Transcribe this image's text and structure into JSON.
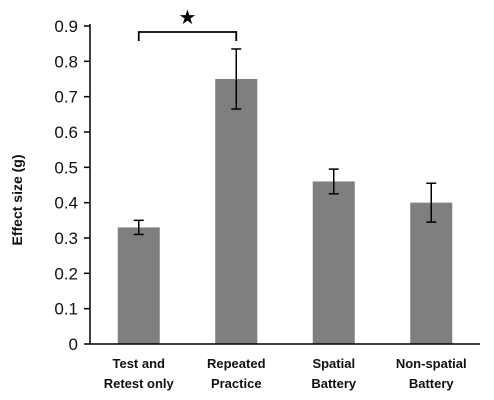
{
  "chart_data": {
    "type": "bar",
    "categories": [
      [
        "Test and",
        "Retest only"
      ],
      [
        "Repeated",
        "Practice"
      ],
      [
        "Spatial",
        "Battery"
      ],
      [
        "Non-spatial",
        "Battery"
      ]
    ],
    "values": [
      0.33,
      0.75,
      0.46,
      0.4
    ],
    "error_low": [
      0.31,
      0.665,
      0.425,
      0.345
    ],
    "error_high": [
      0.35,
      0.835,
      0.495,
      0.455
    ],
    "ylabel": "Effect size (g)",
    "xlabel": "",
    "ylim": [
      0,
      0.9
    ],
    "yticks": [
      "0",
      "0.1",
      "0.2",
      "0.3",
      "0.4",
      "0.5",
      "0.6",
      "0.7",
      "0.8",
      "0.9"
    ],
    "significance": {
      "between": [
        0,
        1
      ],
      "symbol": "★"
    },
    "bar_color": "#7f7f7f",
    "grid": false,
    "legend": "none"
  }
}
